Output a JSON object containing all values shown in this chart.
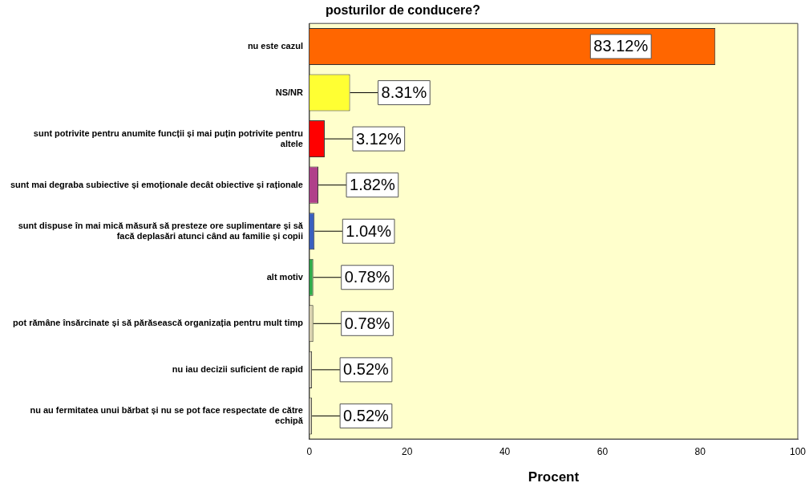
{
  "chart_data": {
    "type": "bar",
    "orientation": "horizontal",
    "title": "posturilor de conducere?",
    "xlabel": "Procent",
    "categories": [
      "nu este cazul",
      "NS/NR",
      "sunt potrivite pentru anumite funcții și mai puțin potrivite pentru altele",
      "sunt mai degraba subiective și emoționale decât obiective și raționale",
      "sunt dispuse în mai mică măsură să presteze ore suplimentare și să facă deplasări atunci când au familie și copii",
      "alt motiv",
      "pot rămâne însărcinate și să părăsească organizația pentru mult timp",
      "nu iau decizii suficient de rapid",
      "nu au fermitatea unui bărbat și nu se pot face respectate de către echipă"
    ],
    "values": [
      83.12,
      8.31,
      3.12,
      1.82,
      1.04,
      0.78,
      0.78,
      0.52,
      0.52
    ],
    "colors": [
      "#ff6600",
      "#ffff33",
      "#ff0000",
      "#b0408a",
      "#3a5fbf",
      "#2eaa4a",
      "#d9d2b0",
      "#d2cdb8",
      "#cfcab6"
    ],
    "value_labels": [
      "83.12%",
      "8.31%",
      "3.12%",
      "1.82%",
      "1.04%",
      "0.78%",
      "0.78%",
      "0.52%",
      "0.52%"
    ],
    "xlim": [
      0,
      100
    ],
    "xticks": [
      0,
      20,
      40,
      60,
      80,
      100
    ],
    "grid": false,
    "legend": false
  }
}
